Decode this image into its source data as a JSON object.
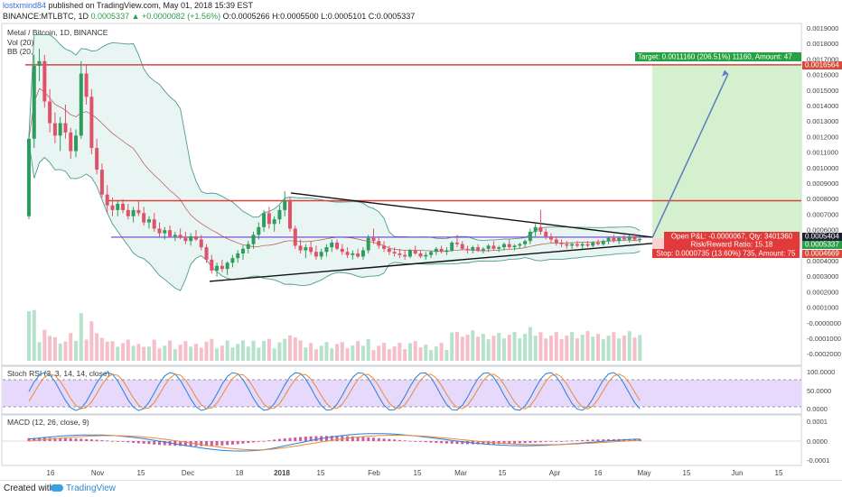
{
  "header": {
    "author": "lostxmind84",
    "published_text": "published on TradingView.com, May 01, 2018 15:39 EST",
    "symbol": "BINANCE:MTLBTC, 1D",
    "last_price": "0.0005337",
    "change": "▲ +0.0000082 (+1.56%)",
    "ohlc_text": "O:0.0005266 H:0.0005500 L:0.0005101 C:0.0005337"
  },
  "legend": {
    "title": "Metal / Bitcoin, 1D, BINANCE",
    "vol": "Vol (20)",
    "bb": "BB (20, close, 2)",
    "stoch": "Stoch RSI (3, 3, 14, 14, close)",
    "macd": "MACD (12, 26, close, 9)"
  },
  "trade": {
    "target_label": "Target: 0.0011160 (206.51%) 11160, Amount: 47",
    "open_pl_label": "Open P&L: -0.0000067, Qty: 3401360",
    "rr_label": "Risk/Reward Ratio: 15.18",
    "stop_label": "Stop: 0.0000735 (13.60%) 735, Amount: 75",
    "target_price": 0.0016564,
    "entry_price": 0.0005404,
    "stop_price": 0.0004669
  },
  "price_tags": {
    "target": "0.0016564",
    "entry": "0.0005404",
    "last": "0.0005337",
    "stop": "0.0004669"
  },
  "axis": {
    "price_ticks": [
      "0.0019000",
      "0.0018000",
      "0.0017000",
      "0.0016000",
      "0.0015000",
      "0.0014000",
      "0.0013000",
      "0.0012000",
      "0.0011000",
      "0.0010000",
      "0.0009000",
      "0.0008000",
      "0.0007000",
      "0.0006000",
      "0.0005000",
      "0.0004000",
      "0.0003000",
      "0.0002000",
      "0.0001000",
      "-0.0000000",
      "-0.0001000",
      "-0.0002000"
    ],
    "stoch_ticks": [
      "100.0000",
      "50.0000",
      "0.0000"
    ],
    "macd_ticks": [
      "0.0001",
      "0.0000",
      "-0.0001"
    ],
    "date_ticks": [
      "16",
      "Nov",
      "15",
      "Dec",
      "18",
      "2018",
      "15",
      "Feb",
      "15",
      "Mar",
      "15",
      "Apr",
      "16",
      "May",
      "15",
      "Jun",
      "15"
    ]
  },
  "footer": {
    "created_with": "Created with",
    "brand": "TradingView"
  },
  "colors": {
    "up": "#2e9c5c",
    "down": "#e0526a",
    "bb_band": "#4f9b8f",
    "bb_fill": "#e9f5f3",
    "resistance": "#d3463c",
    "support_line": "#6a3fd1",
    "target_zone": "#c9ecc2",
    "stop_zone": "#f6c7c7",
    "stoch_band": "#e6d9fb"
  },
  "chart_data": {
    "type": "candlestick",
    "symbol": "MTLBTC",
    "timeframe": "1D",
    "ylim": [
      -0.00025,
      0.00195
    ],
    "levels": {
      "resistance_high": 0.0016564,
      "resistance_mid": 0.00078,
      "support": 0.000545
    },
    "candles": [
      {
        "o": 0.00068,
        "h": 0.0012,
        "l": 0.00066,
        "c": 0.00118
      },
      {
        "o": 0.00118,
        "h": 0.00172,
        "l": 0.00112,
        "c": 0.00165
      },
      {
        "o": 0.00165,
        "h": 0.00176,
        "l": 0.00155,
        "c": 0.00168
      },
      {
        "o": 0.00168,
        "h": 0.00172,
        "l": 0.00138,
        "c": 0.00142
      },
      {
        "o": 0.00142,
        "h": 0.0015,
        "l": 0.00122,
        "c": 0.00128
      },
      {
        "o": 0.00128,
        "h": 0.00135,
        "l": 0.00115,
        "c": 0.0012
      },
      {
        "o": 0.0012,
        "h": 0.00132,
        "l": 0.0011,
        "c": 0.00128
      },
      {
        "o": 0.00128,
        "h": 0.0014,
        "l": 0.00118,
        "c": 0.00122
      },
      {
        "o": 0.00122,
        "h": 0.00125,
        "l": 0.00105,
        "c": 0.0011
      },
      {
        "o": 0.0011,
        "h": 0.00124,
        "l": 0.00106,
        "c": 0.0012
      },
      {
        "o": 0.0012,
        "h": 0.00168,
        "l": 0.00118,
        "c": 0.0016
      },
      {
        "o": 0.0016,
        "h": 0.00166,
        "l": 0.0014,
        "c": 0.00145
      },
      {
        "o": 0.00145,
        "h": 0.0015,
        "l": 0.00108,
        "c": 0.00112
      },
      {
        "o": 0.00112,
        "h": 0.00118,
        "l": 0.00095,
        "c": 0.00098
      },
      {
        "o": 0.00098,
        "h": 0.00102,
        "l": 0.0008,
        "c": 0.00082
      },
      {
        "o": 0.00082,
        "h": 0.00088,
        "l": 0.0007,
        "c": 0.00075
      },
      {
        "o": 0.00075,
        "h": 0.0008,
        "l": 0.00068,
        "c": 0.00072
      },
      {
        "o": 0.00072,
        "h": 0.00078,
        "l": 0.00068,
        "c": 0.00076
      },
      {
        "o": 0.00076,
        "h": 0.00079,
        "l": 0.0007,
        "c": 0.00072
      },
      {
        "o": 0.00072,
        "h": 0.00076,
        "l": 0.00066,
        "c": 0.00068
      },
      {
        "o": 0.00068,
        "h": 0.00074,
        "l": 0.00064,
        "c": 0.00072
      },
      {
        "o": 0.00072,
        "h": 0.00078,
        "l": 0.00068,
        "c": 0.0007
      },
      {
        "o": 0.0007,
        "h": 0.00074,
        "l": 0.00062,
        "c": 0.00064
      },
      {
        "o": 0.00064,
        "h": 0.00068,
        "l": 0.0006,
        "c": 0.00066
      },
      {
        "o": 0.00066,
        "h": 0.0007,
        "l": 0.00058,
        "c": 0.0006
      },
      {
        "o": 0.0006,
        "h": 0.00064,
        "l": 0.00055,
        "c": 0.00057
      },
      {
        "o": 0.00057,
        "h": 0.00061,
        "l": 0.00053,
        "c": 0.00059
      },
      {
        "o": 0.00059,
        "h": 0.00062,
        "l": 0.00054,
        "c": 0.00055
      },
      {
        "o": 0.00055,
        "h": 0.00058,
        "l": 0.00052,
        "c": 0.00056
      },
      {
        "o": 0.00056,
        "h": 0.0006,
        "l": 0.00053,
        "c": 0.00054
      },
      {
        "o": 0.00054,
        "h": 0.00058,
        "l": 0.0005,
        "c": 0.00052
      },
      {
        "o": 0.00052,
        "h": 0.00057,
        "l": 0.00049,
        "c": 0.00055
      },
      {
        "o": 0.00055,
        "h": 0.00059,
        "l": 0.00052,
        "c": 0.00053
      },
      {
        "o": 0.00053,
        "h": 0.00056,
        "l": 0.00046,
        "c": 0.00048
      },
      {
        "o": 0.00048,
        "h": 0.0005,
        "l": 0.00038,
        "c": 0.0004
      },
      {
        "o": 0.0004,
        "h": 0.00043,
        "l": 0.00031,
        "c": 0.00033
      },
      {
        "o": 0.00033,
        "h": 0.00038,
        "l": 0.00029,
        "c": 0.00036
      },
      {
        "o": 0.00036,
        "h": 0.0004,
        "l": 0.00032,
        "c": 0.00034
      },
      {
        "o": 0.00034,
        "h": 0.00039,
        "l": 0.0003,
        "c": 0.00038
      },
      {
        "o": 0.00038,
        "h": 0.00043,
        "l": 0.00035,
        "c": 0.00041
      },
      {
        "o": 0.00041,
        "h": 0.00046,
        "l": 0.00038,
        "c": 0.00044
      },
      {
        "o": 0.00044,
        "h": 0.00049,
        "l": 0.0004,
        "c": 0.00047
      },
      {
        "o": 0.00047,
        "h": 0.00052,
        "l": 0.00044,
        "c": 0.0005
      },
      {
        "o": 0.0005,
        "h": 0.00058,
        "l": 0.00047,
        "c": 0.00056
      },
      {
        "o": 0.00056,
        "h": 0.00064,
        "l": 0.00053,
        "c": 0.00061
      },
      {
        "o": 0.00061,
        "h": 0.00072,
        "l": 0.00058,
        "c": 0.0007
      },
      {
        "o": 0.0007,
        "h": 0.00074,
        "l": 0.0006,
        "c": 0.00063
      },
      {
        "o": 0.00063,
        "h": 0.00068,
        "l": 0.00058,
        "c": 0.00066
      },
      {
        "o": 0.00066,
        "h": 0.00075,
        "l": 0.00063,
        "c": 0.00072
      },
      {
        "o": 0.00072,
        "h": 0.00084,
        "l": 0.00068,
        "c": 0.00078
      },
      {
        "o": 0.00078,
        "h": 0.0008,
        "l": 0.00058,
        "c": 0.0006
      },
      {
        "o": 0.0006,
        "h": 0.00062,
        "l": 0.00047,
        "c": 0.00049
      },
      {
        "o": 0.00049,
        "h": 0.00053,
        "l": 0.00044,
        "c": 0.00046
      },
      {
        "o": 0.00046,
        "h": 0.0005,
        "l": 0.00041,
        "c": 0.00048
      },
      {
        "o": 0.00048,
        "h": 0.00052,
        "l": 0.00043,
        "c": 0.00045
      },
      {
        "o": 0.00045,
        "h": 0.00049,
        "l": 0.0004,
        "c": 0.00042
      },
      {
        "o": 0.00042,
        "h": 0.00047,
        "l": 0.0004,
        "c": 0.00045
      },
      {
        "o": 0.00045,
        "h": 0.0005,
        "l": 0.00042,
        "c": 0.00048
      },
      {
        "o": 0.00048,
        "h": 0.00053,
        "l": 0.00045,
        "c": 0.00051
      },
      {
        "o": 0.00051,
        "h": 0.00053,
        "l": 0.00046,
        "c": 0.00047
      },
      {
        "o": 0.00047,
        "h": 0.0005,
        "l": 0.00043,
        "c": 0.00045
      },
      {
        "o": 0.00045,
        "h": 0.00048,
        "l": 0.00041,
        "c": 0.00043
      },
      {
        "o": 0.00043,
        "h": 0.00046,
        "l": 0.0004,
        "c": 0.00044
      },
      {
        "o": 0.00044,
        "h": 0.00047,
        "l": 0.00041,
        "c": 0.00042
      },
      {
        "o": 0.00042,
        "h": 0.00048,
        "l": 0.0004,
        "c": 0.00046
      },
      {
        "o": 0.00046,
        "h": 0.00056,
        "l": 0.00044,
        "c": 0.00054
      },
      {
        "o": 0.00054,
        "h": 0.0006,
        "l": 0.0005,
        "c": 0.00052
      },
      {
        "o": 0.00052,
        "h": 0.00055,
        "l": 0.00047,
        "c": 0.00049
      },
      {
        "o": 0.00049,
        "h": 0.00052,
        "l": 0.00045,
        "c": 0.00047
      },
      {
        "o": 0.00047,
        "h": 0.00049,
        "l": 0.00043,
        "c": 0.00045
      },
      {
        "o": 0.00045,
        "h": 0.00048,
        "l": 0.00042,
        "c": 0.00044
      },
      {
        "o": 0.00044,
        "h": 0.00047,
        "l": 0.00041,
        "c": 0.00043
      },
      {
        "o": 0.00043,
        "h": 0.00046,
        "l": 0.0004,
        "c": 0.00042
      },
      {
        "o": 0.00042,
        "h": 0.00047,
        "l": 0.00041,
        "c": 0.00046
      },
      {
        "o": 0.00046,
        "h": 0.00049,
        "l": 0.00043,
        "c": 0.00044
      },
      {
        "o": 0.00044,
        "h": 0.00046,
        "l": 0.00041,
        "c": 0.00042
      },
      {
        "o": 0.00042,
        "h": 0.00045,
        "l": 0.0004,
        "c": 0.00043
      },
      {
        "o": 0.00043,
        "h": 0.00046,
        "l": 0.00041,
        "c": 0.00045
      },
      {
        "o": 0.00045,
        "h": 0.00048,
        "l": 0.00043,
        "c": 0.00047
      },
      {
        "o": 0.00047,
        "h": 0.00049,
        "l": 0.00044,
        "c": 0.00045
      },
      {
        "o": 0.00045,
        "h": 0.00048,
        "l": 0.00043,
        "c": 0.00046
      },
      {
        "o": 0.00046,
        "h": 0.00052,
        "l": 0.00045,
        "c": 0.00051
      },
      {
        "o": 0.00051,
        "h": 0.00056,
        "l": 0.00048,
        "c": 0.0005
      },
      {
        "o": 0.0005,
        "h": 0.00052,
        "l": 0.00046,
        "c": 0.00047
      },
      {
        "o": 0.00047,
        "h": 0.00049,
        "l": 0.00044,
        "c": 0.00046
      },
      {
        "o": 0.00046,
        "h": 0.00049,
        "l": 0.00044,
        "c": 0.00048
      },
      {
        "o": 0.00048,
        "h": 0.0005,
        "l": 0.00045,
        "c": 0.00046
      },
      {
        "o": 0.00046,
        "h": 0.00048,
        "l": 0.00044,
        "c": 0.00047
      },
      {
        "o": 0.00047,
        "h": 0.0005,
        "l": 0.00045,
        "c": 0.00049
      },
      {
        "o": 0.00049,
        "h": 0.00052,
        "l": 0.00046,
        "c": 0.00047
      },
      {
        "o": 0.00047,
        "h": 0.00049,
        "l": 0.00045,
        "c": 0.00048
      },
      {
        "o": 0.00048,
        "h": 0.00051,
        "l": 0.00046,
        "c": 0.0005
      },
      {
        "o": 0.0005,
        "h": 0.00053,
        "l": 0.00047,
        "c": 0.00048
      },
      {
        "o": 0.00048,
        "h": 0.0005,
        "l": 0.00046,
        "c": 0.00049
      },
      {
        "o": 0.00049,
        "h": 0.00051,
        "l": 0.00047,
        "c": 0.0005
      },
      {
        "o": 0.0005,
        "h": 0.00053,
        "l": 0.00048,
        "c": 0.00052
      },
      {
        "o": 0.00052,
        "h": 0.0006,
        "l": 0.0005,
        "c": 0.00058
      },
      {
        "o": 0.00058,
        "h": 0.00063,
        "l": 0.00055,
        "c": 0.00061
      },
      {
        "o": 0.00061,
        "h": 0.00072,
        "l": 0.00056,
        "c": 0.00058
      },
      {
        "o": 0.00058,
        "h": 0.0006,
        "l": 0.00053,
        "c": 0.00055
      },
      {
        "o": 0.00055,
        "h": 0.00057,
        "l": 0.00051,
        "c": 0.00053
      },
      {
        "o": 0.00053,
        "h": 0.00055,
        "l": 0.00049,
        "c": 0.00051
      },
      {
        "o": 0.00051,
        "h": 0.00053,
        "l": 0.00048,
        "c": 0.0005
      },
      {
        "o": 0.0005,
        "h": 0.00052,
        "l": 0.00047,
        "c": 0.00049
      },
      {
        "o": 0.00049,
        "h": 0.00051,
        "l": 0.00047,
        "c": 0.0005
      },
      {
        "o": 0.0005,
        "h": 0.00052,
        "l": 0.00048,
        "c": 0.00049
      },
      {
        "o": 0.00049,
        "h": 0.00051,
        "l": 0.00047,
        "c": 0.0005
      },
      {
        "o": 0.0005,
        "h": 0.00052,
        "l": 0.00048,
        "c": 0.00049
      },
      {
        "o": 0.00049,
        "h": 0.00052,
        "l": 0.00048,
        "c": 0.00051
      },
      {
        "o": 0.00051,
        "h": 0.00053,
        "l": 0.00049,
        "c": 0.0005
      },
      {
        "o": 0.0005,
        "h": 0.00053,
        "l": 0.00049,
        "c": 0.00052
      },
      {
        "o": 0.00052,
        "h": 0.00055,
        "l": 0.0005,
        "c": 0.00054
      },
      {
        "o": 0.00054,
        "h": 0.00056,
        "l": 0.00051,
        "c": 0.00052
      },
      {
        "o": 0.00052,
        "h": 0.00055,
        "l": 0.0005,
        "c": 0.00054
      },
      {
        "o": 0.00054,
        "h": 0.00056,
        "l": 0.00052,
        "c": 0.00053
      },
      {
        "o": 0.00053,
        "h": 0.00056,
        "l": 0.00051,
        "c": 0.00055
      },
      {
        "o": 0.00055,
        "h": 0.00057,
        "l": 0.00052,
        "c": 0.00053
      },
      {
        "o": 0.0005266,
        "h": 0.00055,
        "l": 0.0005101,
        "c": 0.0005337
      }
    ]
  }
}
